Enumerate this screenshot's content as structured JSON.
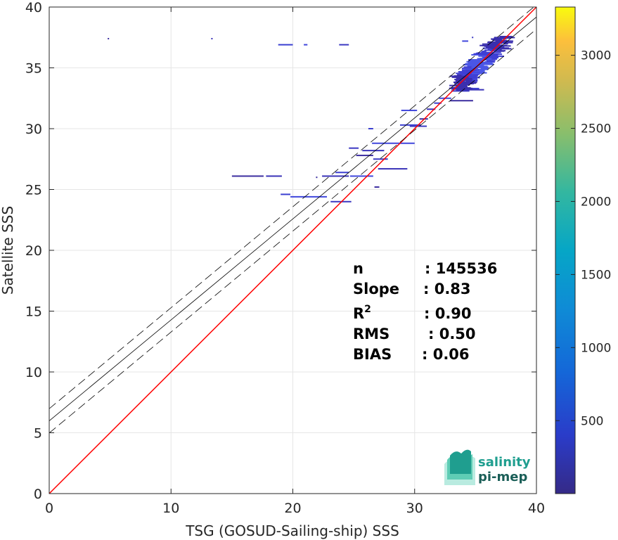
{
  "chart_data": {
    "type": "scatter",
    "xlabel": "TSG (GOSUD-Sailing-ship) SSS",
    "ylabel": "Satellite SSS",
    "xlim": [
      0,
      40
    ],
    "ylim": [
      0,
      40
    ],
    "xticks": [
      "0",
      "10",
      "20",
      "30",
      "40"
    ],
    "yticks": [
      "0",
      "5",
      "10",
      "15",
      "20",
      "25",
      "30",
      "35",
      "40"
    ],
    "grid": true,
    "colormap": "parula",
    "colorbar": {
      "ticks": [
        "500",
        "1000",
        "1500",
        "2000",
        "2500",
        "3000"
      ],
      "tick_values": [
        500,
        1000,
        1500,
        2000,
        2500,
        3000
      ],
      "range": [
        1,
        3330
      ]
    },
    "reference_lines": {
      "identity": {
        "intercept": 0,
        "slope": 1,
        "color": "#ff0000"
      },
      "fit": {
        "intercept": 5.98,
        "slope": 0.83,
        "color": "#000000"
      },
      "fit_band_offset": 1.0
    },
    "stats": [
      {
        "label": "n",
        "sep": ": ",
        "value": "145536"
      },
      {
        "label": "Slope",
        "sep": ": ",
        "value": "0.83"
      },
      {
        "label": "R",
        "sup": "2",
        "sep": ": ",
        "value": "0.90"
      },
      {
        "label": "RMS",
        "sep": ": ",
        "value": "0.50"
      },
      {
        "label": "BIAS",
        "sep": ": ",
        "value": "0.06"
      }
    ],
    "density_segments": [
      {
        "x0": 4.8,
        "x1": 4.9,
        "y": 37.4
      },
      {
        "x0": 13.3,
        "x1": 13.4,
        "y": 37.4
      },
      {
        "x0": 18.8,
        "x1": 20.0,
        "y": 36.9
      },
      {
        "x0": 20.9,
        "x1": 21.2,
        "y": 36.9
      },
      {
        "x0": 23.8,
        "x1": 24.6,
        "y": 36.9
      },
      {
        "x0": 15.0,
        "x1": 17.6,
        "y": 26.1
      },
      {
        "x0": 17.8,
        "x1": 19.1,
        "y": 26.1
      },
      {
        "x0": 19.0,
        "x1": 19.8,
        "y": 24.6
      },
      {
        "x0": 19.8,
        "x1": 22.8,
        "y": 24.4
      },
      {
        "x0": 23.1,
        "x1": 24.8,
        "y": 24.0
      },
      {
        "x0": 21.9,
        "x1": 22.0,
        "y": 26.0
      },
      {
        "x0": 22.4,
        "x1": 24.6,
        "y": 26.1
      },
      {
        "x0": 23.5,
        "x1": 24.6,
        "y": 26.4
      },
      {
        "x0": 24.7,
        "x1": 26.6,
        "y": 26.1
      },
      {
        "x0": 24.6,
        "x1": 25.4,
        "y": 28.4
      },
      {
        "x0": 25.2,
        "x1": 26.6,
        "y": 27.8
      },
      {
        "x0": 25.7,
        "x1": 27.5,
        "y": 28.2
      },
      {
        "x0": 26.2,
        "x1": 26.6,
        "y": 30.0
      },
      {
        "x0": 26.5,
        "x1": 30.0,
        "y": 28.8
      },
      {
        "x0": 26.6,
        "x1": 27.8,
        "y": 27.5
      },
      {
        "x0": 26.7,
        "x1": 27.1,
        "y": 25.2
      },
      {
        "x0": 27.0,
        "x1": 29.4,
        "y": 26.7
      },
      {
        "x0": 28.8,
        "x1": 30.5,
        "y": 30.3
      },
      {
        "x0": 28.9,
        "x1": 30.2,
        "y": 31.5
      },
      {
        "x0": 29.6,
        "x1": 31.0,
        "y": 30.2
      },
      {
        "x0": 30.4,
        "x1": 31.1,
        "y": 30.8
      },
      {
        "x0": 31.0,
        "x1": 31.7,
        "y": 31.6
      },
      {
        "x0": 31.6,
        "x1": 32.2,
        "y": 32.1
      },
      {
        "x0": 32.0,
        "x1": 33.0,
        "y": 32.5
      },
      {
        "x0": 33.0,
        "x1": 34.5,
        "y": 33.1
      },
      {
        "x0": 32.9,
        "x1": 34.8,
        "y": 32.3
      },
      {
        "x0": 33.4,
        "x1": 35.7,
        "y": 33.2
      },
      {
        "x0": 34.6,
        "x1": 35.3,
        "y": 33.3
      },
      {
        "x0": 33.9,
        "x1": 34.4,
        "y": 37.2
      },
      {
        "x0": 34.7,
        "x1": 34.8,
        "y": 37.5
      }
    ],
    "density_cluster": {
      "x0": 33.4,
      "x1": 37.6,
      "y0": 33.2,
      "y1": 37.6,
      "center_x": 35.3,
      "center_y": 35.3
    }
  },
  "logo": {
    "line1": "salinity",
    "line2": "pi-mep"
  }
}
